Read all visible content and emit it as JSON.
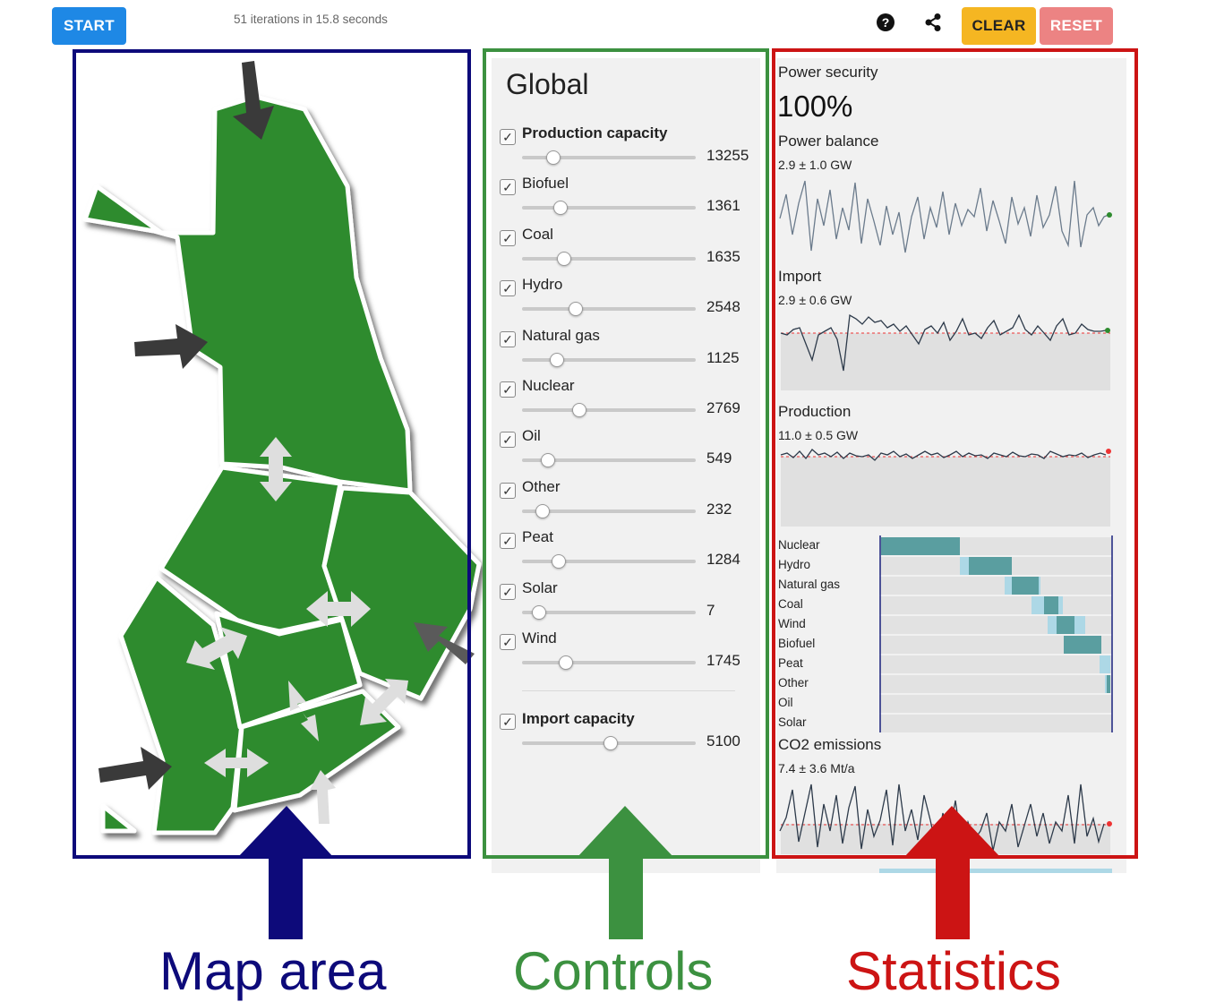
{
  "toolbar": {
    "start_label": "START",
    "iterations_text": "51 iterations in 15.8 seconds",
    "help_icon": "help-icon",
    "share_icon": "share-icon",
    "clear_label": "CLEAR",
    "reset_label": "RESET",
    "colors": {
      "start": "#1e88e5",
      "clear": "#f5b622",
      "reset": "#ec8383"
    }
  },
  "controls": {
    "title": "Global",
    "items": [
      {
        "label": "Production capacity",
        "value": "13255",
        "checked": true,
        "bold": true,
        "fraction": 0.18
      },
      {
        "label": "Biofuel",
        "value": "1361",
        "checked": true,
        "bold": false,
        "fraction": 0.22
      },
      {
        "label": "Coal",
        "value": "1635",
        "checked": true,
        "bold": false,
        "fraction": 0.24
      },
      {
        "label": "Hydro",
        "value": "2548",
        "checked": true,
        "bold": false,
        "fraction": 0.31
      },
      {
        "label": "Natural gas",
        "value": "1125",
        "checked": true,
        "bold": false,
        "fraction": 0.2
      },
      {
        "label": "Nuclear",
        "value": "2769",
        "checked": true,
        "bold": false,
        "fraction": 0.33
      },
      {
        "label": "Oil",
        "value": "549",
        "checked": true,
        "bold": false,
        "fraction": 0.15
      },
      {
        "label": "Other",
        "value": "232",
        "checked": true,
        "bold": false,
        "fraction": 0.12
      },
      {
        "label": "Peat",
        "value": "1284",
        "checked": true,
        "bold": false,
        "fraction": 0.21
      },
      {
        "label": "Solar",
        "value": "7",
        "checked": true,
        "bold": false,
        "fraction": 0.1
      },
      {
        "label": "Wind",
        "value": "1745",
        "checked": true,
        "bold": false,
        "fraction": 0.25
      }
    ],
    "import": {
      "label": "Import capacity",
      "value": "5100",
      "checked": true,
      "fraction": 0.51
    }
  },
  "stats": {
    "security_title": "Power security",
    "security_value": "100%",
    "balance_title": "Power balance",
    "balance_sub": "2.9 ± 1.0 GW",
    "import_title": "Import",
    "import_sub": "2.9 ± 0.6 GW",
    "production_title": "Production",
    "production_sub": "11.0 ± 0.5 GW",
    "merit_order": [
      "Nuclear",
      "Hydro",
      "Natural gas",
      "Coal",
      "Wind",
      "Biofuel",
      "Peat",
      "Other",
      "Oil",
      "Solar"
    ],
    "co2_title": "CO2 emissions",
    "co2_sub": "7.4 ± 3.6 Mt/a"
  },
  "annotations": {
    "map_label": "Map area",
    "controls_label": "Controls",
    "stats_label": "Statistics",
    "colors": {
      "map": "#0d0a7a",
      "controls": "#3c9140",
      "stats": "#cc1414"
    }
  },
  "map": {
    "region_color": "#2e8b2e"
  }
}
